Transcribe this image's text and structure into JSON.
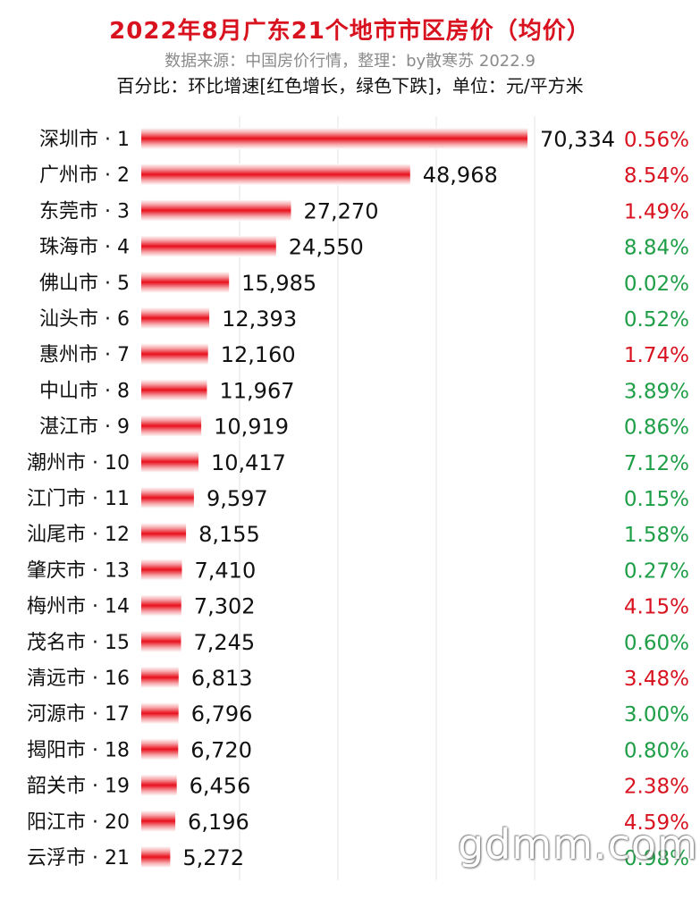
{
  "header": {
    "title": "2022年8月广东21个地市市区房价（均价）",
    "subtitle": "数据来源：中国房价行情，整理：by散寒苏 2022.9",
    "note": "百分比：环比增速[红色增长，绿色下跌]，单位：元/平方米"
  },
  "colors": {
    "bar": "#e8101c",
    "up": "#d8121f",
    "down": "#1e9e46",
    "grid": "#e3e3e3"
  },
  "watermark": "gdmm.com",
  "chart_data": {
    "type": "bar",
    "orientation": "horizontal",
    "grid": true,
    "categories": [
      "深圳市 · 1",
      "广州市 · 2",
      "东莞市 · 3",
      "珠海市 · 4",
      "佛山市 · 5",
      "汕头市 · 6",
      "惠州市 · 7",
      "中山市 · 8",
      "湛江市 · 9",
      "潮州市 · 10",
      "江门市 · 11",
      "汕尾市 · 12",
      "肇庆市 · 13",
      "梅州市 · 14",
      "茂名市 · 15",
      "清远市 · 16",
      "河源市 · 17",
      "揭阳市 · 18",
      "韶关市 · 19",
      "阳江市 · 20",
      "云浮市 · 21"
    ],
    "values": [
      70334,
      48968,
      27270,
      24550,
      15985,
      12393,
      12160,
      11967,
      10919,
      10417,
      9597,
      8155,
      7410,
      7302,
      7245,
      6813,
      6796,
      6720,
      6456,
      6196,
      5272
    ],
    "value_labels": [
      "70,334",
      "48,968",
      "27,270",
      "24,550",
      "15,985",
      "12,393",
      "12,160",
      "11,967",
      "10,919",
      "10,417",
      "9,597",
      "8,155",
      "7,410",
      "7,302",
      "7,245",
      "6,813",
      "6,796",
      "6,720",
      "6,456",
      "6,196",
      "5,272"
    ],
    "pct_labels": [
      "0.56%",
      "8.54%",
      "1.49%",
      "8.84%",
      "0.02%",
      "0.52%",
      "1.74%",
      "3.89%",
      "0.86%",
      "7.12%",
      "0.15%",
      "1.58%",
      "0.27%",
      "4.15%",
      "0.60%",
      "3.48%",
      "3.00%",
      "0.80%",
      "2.38%",
      "4.59%",
      "0.98%"
    ],
    "pct_direction": [
      "up",
      "up",
      "up",
      "down",
      "down",
      "down",
      "up",
      "down",
      "down",
      "down",
      "down",
      "down",
      "down",
      "up",
      "down",
      "up",
      "down",
      "down",
      "up",
      "up",
      "down"
    ]
  }
}
